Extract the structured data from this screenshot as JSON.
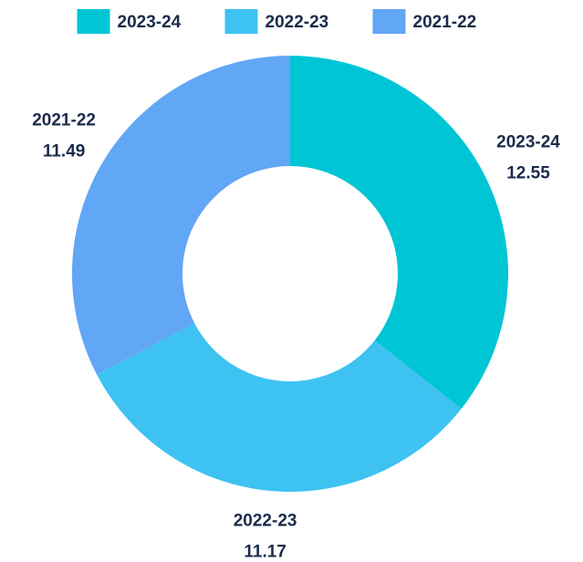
{
  "chart_data": {
    "type": "donut",
    "categories": [
      "2023-24",
      "2022-23",
      "2021-22"
    ],
    "values": [
      12.55,
      11.17,
      11.49
    ],
    "colors": [
      "#00c5d5",
      "#3ec2f2",
      "#62a6f6"
    ],
    "legend": "top"
  }
}
